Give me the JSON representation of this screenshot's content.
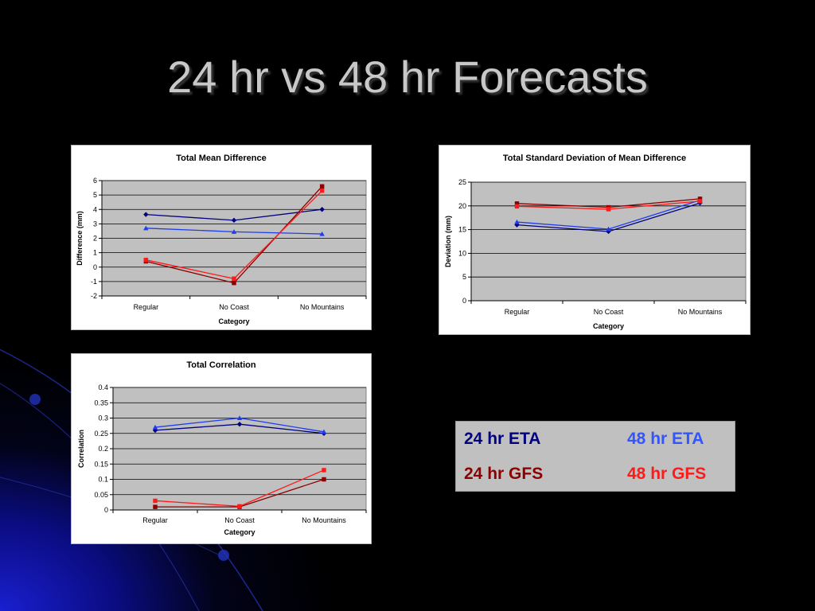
{
  "slide": {
    "title": "24 hr vs 48 hr Forecasts"
  },
  "colors": {
    "eta24": "#000080",
    "eta48": "#1e3cf0",
    "gfs24": "#8b0000",
    "gfs48": "#ff1a1a",
    "plot_area": "#c0c0c0",
    "gridline": "#000000"
  },
  "legend": {
    "items": [
      {
        "label": "24 hr ETA",
        "color": "#000080"
      },
      {
        "label": "48 hr ETA",
        "color": "#3355ff"
      },
      {
        "label": "24 hr GFS",
        "color": "#8b0000"
      },
      {
        "label": "48 hr GFS",
        "color": "#ff1a1a"
      }
    ]
  },
  "chart_data": [
    {
      "type": "line",
      "title": "Total Mean Difference",
      "xlabel": "Category",
      "ylabel": "Difference (mm)",
      "categories": [
        "Regular",
        "No Coast",
        "No Mountains"
      ],
      "ylim": [
        -2,
        6
      ],
      "yticks": [
        "-2",
        "-1",
        "0",
        "1",
        "2",
        "3",
        "4",
        "5",
        "6"
      ],
      "grid": true,
      "series": [
        {
          "values": [
            3.65,
            3.25,
            4.0
          ],
          "color": "#000080",
          "marker": "diamond"
        },
        {
          "values": [
            2.7,
            2.45,
            2.3
          ],
          "color": "#1e3cf0",
          "marker": "triangle"
        },
        {
          "values": [
            0.4,
            -1.1,
            5.6
          ],
          "color": "#8b0000",
          "marker": "square"
        },
        {
          "values": [
            0.5,
            -0.8,
            5.3
          ],
          "color": "#ff1a1a",
          "marker": "square"
        }
      ]
    },
    {
      "type": "line",
      "title": "Total Standard Deviation of Mean Difference",
      "xlabel": "Category",
      "ylabel": "Deviation (mm)",
      "categories": [
        "Regular",
        "No Coast",
        "No Mountains"
      ],
      "ylim": [
        0,
        25
      ],
      "yticks": [
        "0",
        "5",
        "10",
        "15",
        "20",
        "25"
      ],
      "grid": true,
      "series": [
        {
          "values": [
            16.0,
            14.6,
            20.6
          ],
          "color": "#000080",
          "marker": "diamond"
        },
        {
          "values": [
            16.6,
            15.1,
            21.2
          ],
          "color": "#1e3cf0",
          "marker": "triangle"
        },
        {
          "values": [
            20.5,
            19.7,
            21.5
          ],
          "color": "#8b0000",
          "marker": "square"
        },
        {
          "values": [
            19.9,
            19.3,
            21.0
          ],
          "color": "#ff1a1a",
          "marker": "square"
        }
      ]
    },
    {
      "type": "line",
      "title": "Total Correlation",
      "xlabel": "Category",
      "ylabel": "Correlation",
      "categories": [
        "Regular",
        "No Coast",
        "No Mountains"
      ],
      "ylim": [
        0,
        0.4
      ],
      "yticks": [
        "0",
        "0.05",
        "0.1",
        "0.15",
        "0.2",
        "0.25",
        "0.3",
        "0.35",
        "0.4"
      ],
      "grid": true,
      "series": [
        {
          "values": [
            0.26,
            0.28,
            0.25
          ],
          "color": "#000080",
          "marker": "diamond"
        },
        {
          "values": [
            0.27,
            0.3,
            0.255
          ],
          "color": "#1e3cf0",
          "marker": "triangle"
        },
        {
          "values": [
            0.01,
            0.01,
            0.1
          ],
          "color": "#8b0000",
          "marker": "square"
        },
        {
          "values": [
            0.03,
            0.012,
            0.13
          ],
          "color": "#ff1a1a",
          "marker": "square"
        }
      ]
    }
  ]
}
